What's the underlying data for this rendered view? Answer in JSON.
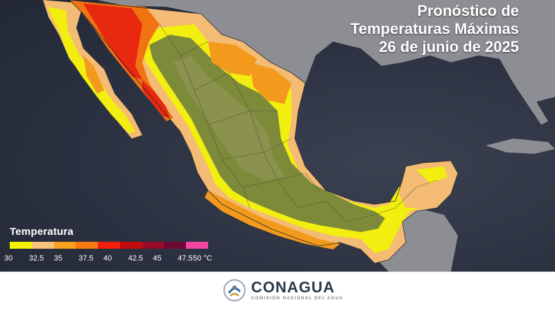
{
  "title": {
    "line1": "Pronóstico de",
    "line2": "Temperaturas Máximas",
    "line3": "26 de junio de 2025"
  },
  "legend": {
    "title": "Temperatura",
    "ticks": [
      "30",
      "32.5",
      "35",
      "37.5",
      "40",
      "42.5",
      "45",
      "47.5",
      "50 °C"
    ],
    "colors": [
      "#f5f500",
      "#f8c27a",
      "#f7a11c",
      "#f77a10",
      "#f21e0e",
      "#c20b0b",
      "#9b0a2a",
      "#6e0a35",
      "#f045a0"
    ]
  },
  "colors": {
    "land_green": "#7d8a3a",
    "yellow": "#f2ee10",
    "light_orange": "#f3bb74",
    "orange": "#f39a1c",
    "dark_orange": "#f07412",
    "red": "#e8280f",
    "sea": "#2b3140"
  },
  "footer": {
    "logo_name": "CONAGUA",
    "logo_sub": "COMISIÓN NACIONAL DEL AGUA"
  }
}
